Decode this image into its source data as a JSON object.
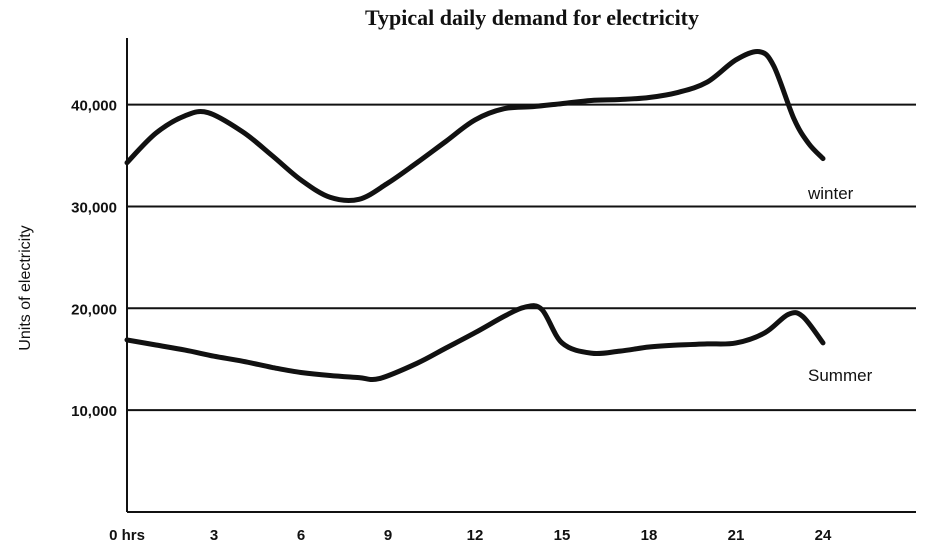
{
  "chart_data": {
    "type": "line",
    "title": "Typical daily demand for electricity",
    "xlabel": "",
    "ylabel": "Units of electricity",
    "xlim": [
      0,
      27
    ],
    "ylim": [
      0,
      47000
    ],
    "x_ticks": [
      0,
      3,
      6,
      9,
      12,
      15,
      18,
      21,
      24
    ],
    "x_tick_labels": [
      "0 hrs",
      "3",
      "6",
      "9",
      "12",
      "15",
      "18",
      "21",
      "24"
    ],
    "y_ticks": [
      10000,
      20000,
      30000,
      40000
    ],
    "y_tick_labels": [
      "10,000",
      "20,000",
      "30,000",
      "40,000"
    ],
    "grid": "horizontal",
    "series": [
      {
        "name": "winter",
        "x": [
          0,
          1,
          2,
          2.8,
          4,
          5,
          6,
          7,
          8,
          9,
          10,
          11,
          12,
          13,
          14,
          15,
          16,
          17,
          18,
          19,
          20,
          21,
          21.8,
          22.3,
          23,
          23.5,
          24
        ],
        "values": [
          34300,
          37200,
          38900,
          39200,
          37300,
          35000,
          32600,
          30900,
          30700,
          32300,
          34300,
          36400,
          38500,
          39600,
          39800,
          40100,
          40400,
          40500,
          40700,
          41200,
          42200,
          44400,
          45200,
          43800,
          38600,
          36200,
          34700
        ]
      },
      {
        "name": "Summer",
        "x": [
          0,
          1,
          2,
          3,
          4,
          5,
          6,
          7,
          8,
          8.7,
          10,
          11,
          12,
          13,
          13.7,
          14.3,
          15,
          16,
          17,
          18,
          19,
          20,
          21,
          22,
          22.8,
          23.3,
          24
        ],
        "values": [
          16900,
          16400,
          15900,
          15300,
          14800,
          14200,
          13700,
          13400,
          13200,
          13100,
          14600,
          16100,
          17600,
          19200,
          20100,
          19900,
          16600,
          15600,
          15800,
          16200,
          16400,
          16500,
          16600,
          17600,
          19400,
          19200,
          16600
        ]
      }
    ]
  }
}
